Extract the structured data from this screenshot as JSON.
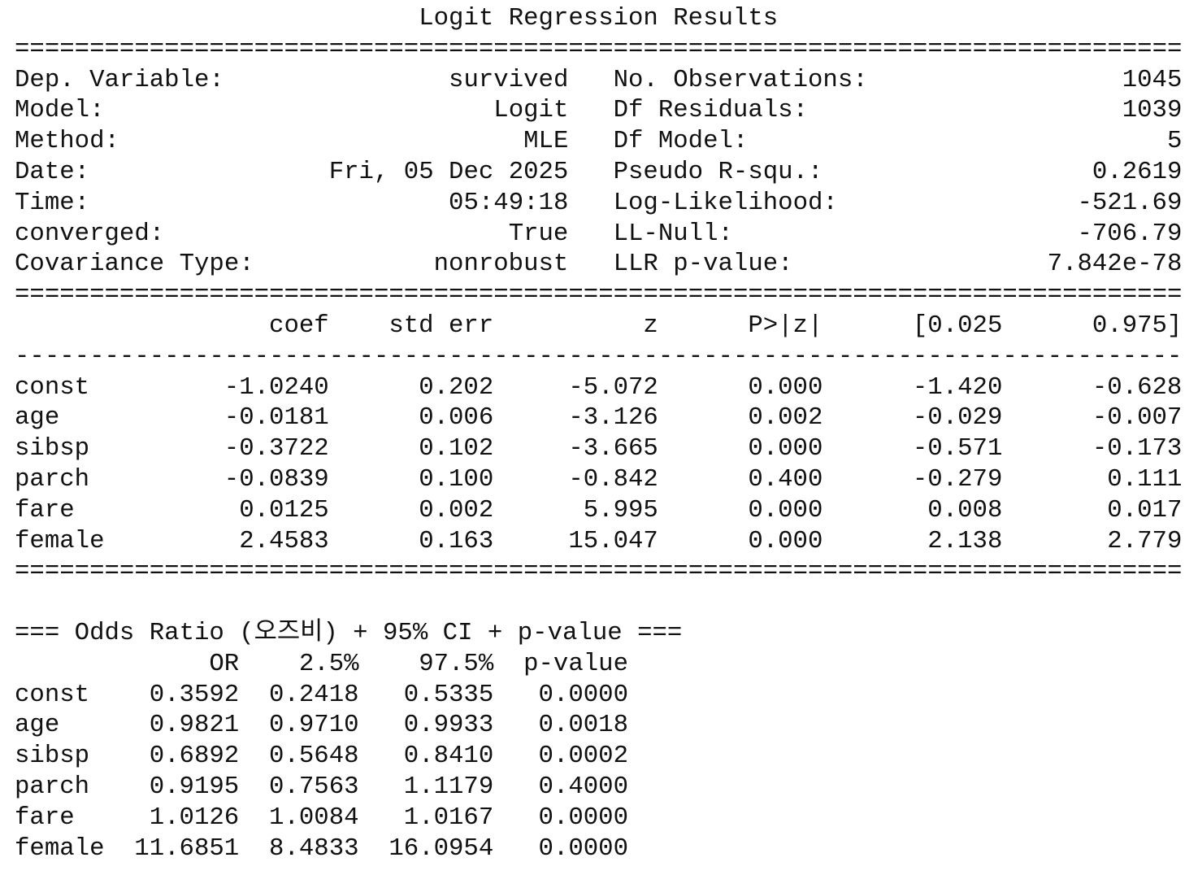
{
  "title": "Logit Regression Results",
  "info_left": [
    {
      "label": "Dep. Variable:",
      "value": "survived"
    },
    {
      "label": "Model:",
      "value": "Logit"
    },
    {
      "label": "Method:",
      "value": "MLE"
    },
    {
      "label": "Date:",
      "value": "Fri, 05 Dec 2025"
    },
    {
      "label": "Time:",
      "value": "05:49:18"
    },
    {
      "label": "converged:",
      "value": "True"
    },
    {
      "label": "Covariance Type:",
      "value": "nonrobust"
    }
  ],
  "info_right": [
    {
      "label": "No. Observations:",
      "value": "1045"
    },
    {
      "label": "Df Residuals:",
      "value": "1039"
    },
    {
      "label": "Df Model:",
      "value": "5"
    },
    {
      "label": "Pseudo R-squ.:",
      "value": "0.2619"
    },
    {
      "label": "Log-Likelihood:",
      "value": "-521.69"
    },
    {
      "label": "LL-Null:",
      "value": "-706.79"
    },
    {
      "label": "LLR p-value:",
      "value": "7.842e-78"
    }
  ],
  "coef_table": {
    "headers": [
      "",
      "coef",
      "std err",
      "z",
      "P>|z|",
      "[0.025",
      "0.975]"
    ],
    "rows": [
      [
        "const",
        "-1.0240",
        "0.202",
        "-5.072",
        "0.000",
        "-1.420",
        "-0.628"
      ],
      [
        "age",
        "-0.0181",
        "0.006",
        "-3.126",
        "0.002",
        "-0.029",
        "-0.007"
      ],
      [
        "sibsp",
        "-0.3722",
        "0.102",
        "-3.665",
        "0.000",
        "-0.571",
        "-0.173"
      ],
      [
        "parch",
        "-0.0839",
        "0.100",
        "-0.842",
        "0.400",
        "-0.279",
        "0.111"
      ],
      [
        "fare",
        "0.0125",
        "0.002",
        "5.995",
        "0.000",
        "0.008",
        "0.017"
      ],
      [
        "female",
        "2.4583",
        "0.163",
        "15.047",
        "0.000",
        "2.138",
        "2.779"
      ]
    ]
  },
  "odds": {
    "title": "=== Odds Ratio (오즈비) + 95% CI + p-value ===",
    "headers": [
      "",
      "OR",
      "2.5%",
      "97.5%",
      "p-value"
    ],
    "rows": [
      [
        "const",
        "0.3592",
        "0.2418",
        "0.5335",
        "0.0000"
      ],
      [
        "age",
        "0.9821",
        "0.9710",
        "0.9933",
        "0.0018"
      ],
      [
        "sibsp",
        "0.6892",
        "0.5648",
        "0.8410",
        "0.0002"
      ],
      [
        "parch",
        "0.9195",
        "0.7563",
        "1.1179",
        "0.4000"
      ],
      [
        "fare",
        "1.0126",
        "1.0084",
        "1.0167",
        "0.0000"
      ],
      [
        "female",
        "11.6851",
        "8.4833",
        "16.0954",
        "0.0000"
      ]
    ]
  }
}
